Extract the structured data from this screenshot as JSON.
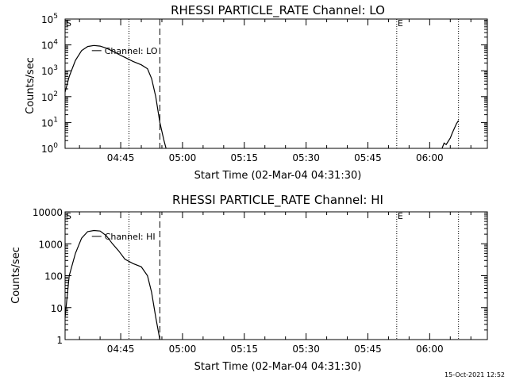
{
  "footer": {
    "timestamp": "15-Oct-2021 12:52"
  },
  "chart_data": [
    {
      "type": "line",
      "title": "RHESSI PARTICLE_RATE Channel: LO",
      "xlabel": "Start Time (02-Mar-04 04:31:30)",
      "ylabel": "Counts/sec",
      "yscale": "log",
      "ylim": [
        1,
        100000
      ],
      "xlim": [
        "04:31:30",
        "06:14:00"
      ],
      "x_tick_labels": [
        "04:45",
        "05:00",
        "05:15",
        "05:30",
        "05:45",
        "06:00"
      ],
      "y_ticks": [
        {
          "value": 1,
          "base": "10",
          "exp": "0"
        },
        {
          "value": 10,
          "base": "10",
          "exp": "1"
        },
        {
          "value": 100,
          "base": "10",
          "exp": "2"
        },
        {
          "value": 1000,
          "base": "10",
          "exp": "3"
        },
        {
          "value": 10000,
          "base": "10",
          "exp": "4"
        },
        {
          "value": 100000,
          "base": "10",
          "exp": "5"
        }
      ],
      "markers": {
        "start_label": "S",
        "end_label": "E"
      },
      "legend": "Channel: LO",
      "vlines": [
        {
          "time": "04:47:00",
          "style": "dotted"
        },
        {
          "time": "04:54:30",
          "style": "dashed"
        },
        {
          "time": "05:52:00",
          "style": "dotted"
        },
        {
          "time": "06:07:00",
          "style": "dotted"
        }
      ],
      "series": [
        {
          "x": [
            "04:31:30",
            "04:32:30",
            "04:34:00",
            "04:35:30",
            "04:37:00",
            "04:38:30",
            "04:40:00",
            "04:41:30",
            "04:43:00",
            "04:44:30",
            "04:46:00",
            "04:48:00",
            "04:50:00",
            "04:51:30",
            "04:52:30",
            "04:53:30",
            "04:54:30",
            "04:55:30",
            "04:56:00"
          ],
          "y": [
            150,
            600,
            2500,
            6000,
            8700,
            9500,
            9000,
            7500,
            5800,
            4300,
            3300,
            2300,
            1700,
            1200,
            500,
            100,
            10,
            2,
            1
          ]
        },
        {
          "x": [
            "06:03:00",
            "06:03:30",
            "06:04:00",
            "06:05:00",
            "06:05:30",
            "06:06:00",
            "06:06:30",
            "06:07:00"
          ],
          "y": [
            1,
            1.6,
            1.4,
            2.5,
            4,
            6,
            9,
            12
          ]
        }
      ]
    },
    {
      "type": "line",
      "title": "RHESSI PARTICLE_RATE Channel: HI",
      "xlabel": "Start Time (02-Mar-04 04:31:30)",
      "ylabel": "Counts/sec",
      "yscale": "log",
      "ylim": [
        1,
        10000
      ],
      "xlim": [
        "04:31:30",
        "06:14:00"
      ],
      "x_tick_labels": [
        "04:45",
        "05:00",
        "05:15",
        "05:30",
        "05:45",
        "06:00"
      ],
      "y_ticks": [
        {
          "value": 1,
          "label": "1"
        },
        {
          "value": 10,
          "label": "10"
        },
        {
          "value": 100,
          "label": "100"
        },
        {
          "value": 1000,
          "label": "1000"
        },
        {
          "value": 10000,
          "label": "10000"
        }
      ],
      "markers": {
        "start_label": "S",
        "end_label": "E"
      },
      "legend": "Channel: HI",
      "vlines": [
        {
          "time": "04:47:00",
          "style": "dotted"
        },
        {
          "time": "04:54:30",
          "style": "dashed"
        },
        {
          "time": "05:52:00",
          "style": "dotted"
        },
        {
          "time": "06:07:00",
          "style": "dotted"
        }
      ],
      "series": [
        {
          "x": [
            "04:31:30",
            "04:32:30",
            "04:34:00",
            "04:35:30",
            "04:37:00",
            "04:38:30",
            "04:40:00",
            "04:41:30",
            "04:43:00",
            "04:44:30",
            "04:46:00",
            "04:48:00",
            "04:50:00",
            "04:51:30",
            "04:52:30",
            "04:53:30",
            "04:54:30"
          ],
          "y": [
            5,
            100,
            500,
            1500,
            2400,
            2600,
            2500,
            1800,
            1000,
            600,
            330,
            240,
            190,
            100,
            30,
            5,
            1
          ]
        }
      ]
    }
  ]
}
